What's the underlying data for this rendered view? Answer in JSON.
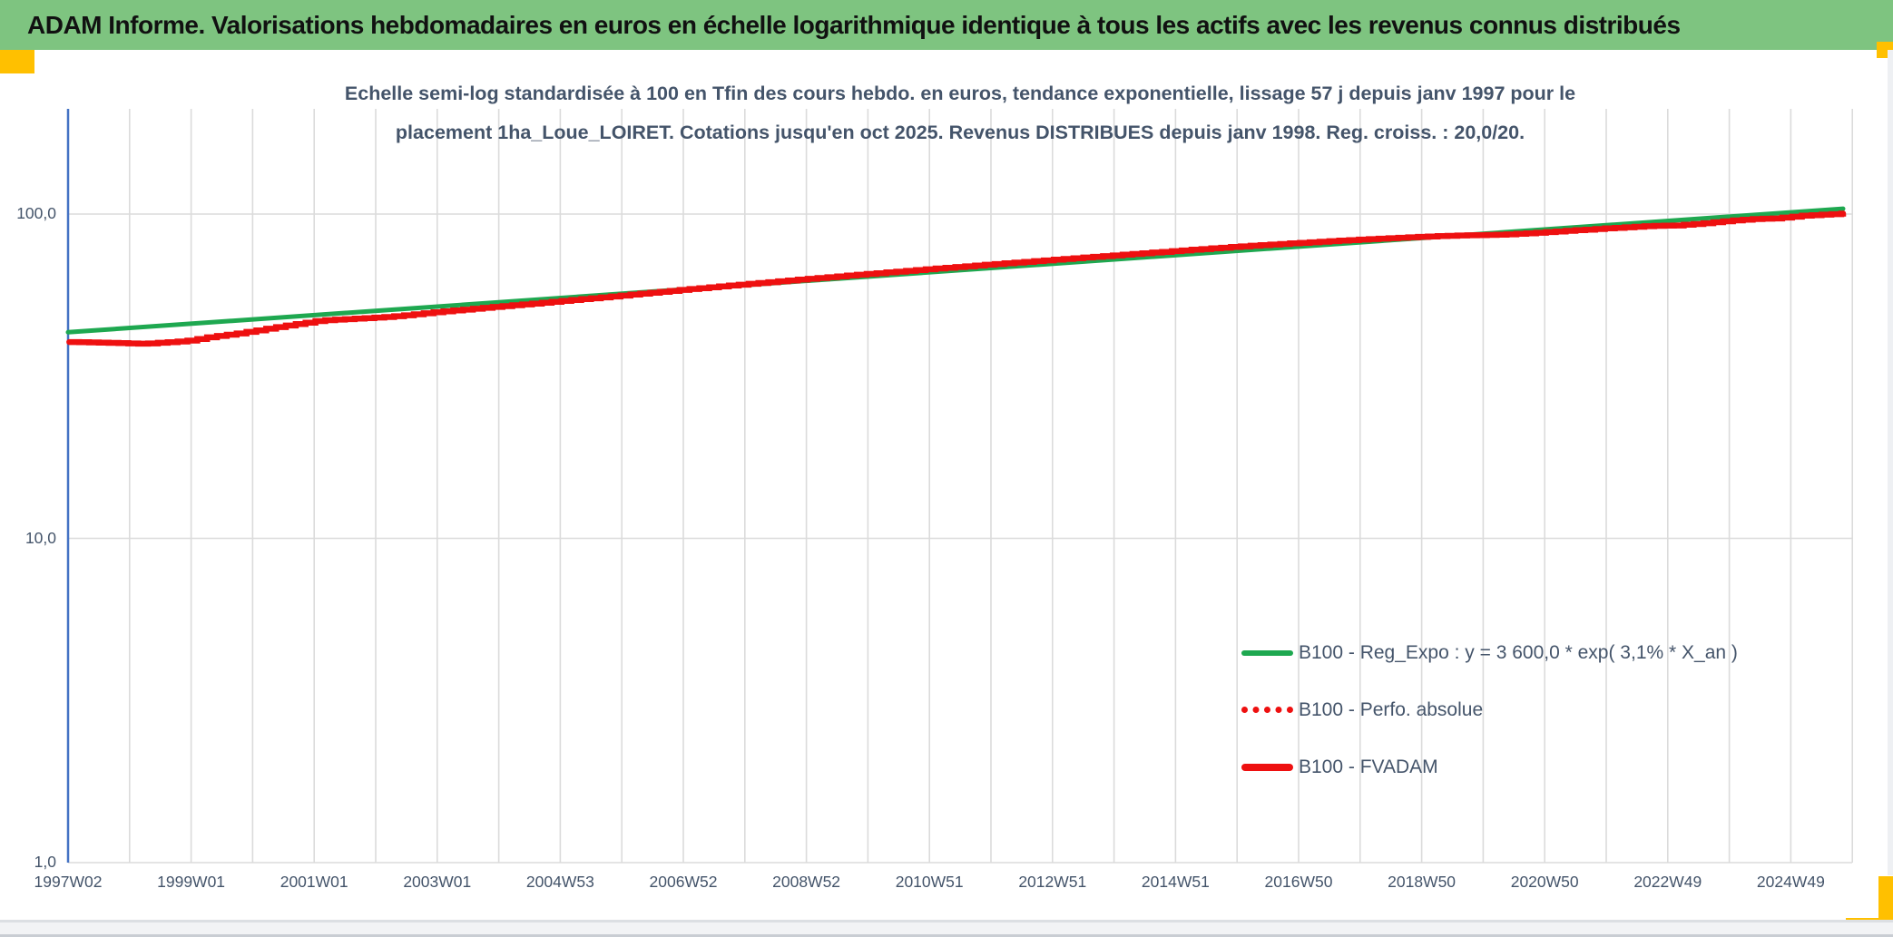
{
  "header": {
    "title": "ADAM Informe. Valorisations hebdomadaires en euros en échelle logarithmique identique à tous les actifs avec les revenus connus distribués"
  },
  "colors": {
    "header_bg": "#7EC480",
    "accent_orange": "#FFC000",
    "green_series": "#1EA850",
    "red_series": "#EE1010",
    "axis_blue": "#4472C4",
    "text": "#44546A",
    "gridline": "#DBDBDB"
  },
  "chart_data": {
    "type": "line",
    "title_line1": "Echelle semi-log standardisée à 100 en Tfin des cours hebdo. en euros, tendance exponentielle, lissage 57 j depuis janv 1997 pour le",
    "title_line2": "placement 1ha_Loue_LOIRET. Cotations jusqu'en oct 2025. Revenus DISTRIBUES depuis janv 1998. Reg. croiss. : 20,0/20.",
    "y_axis": {
      "scale": "log",
      "min": 1.0,
      "max": 210,
      "ticks": [
        {
          "label": "100,0",
          "value": 100
        },
        {
          "label": "10,0",
          "value": 10
        },
        {
          "label": "1,0",
          "value": 1
        }
      ]
    },
    "x_axis": {
      "start_year": 1997,
      "end_year": 2026,
      "gridline_every_years": 1,
      "tick_labels": [
        "1997W02",
        "1999W01",
        "2001W01",
        "2003W01",
        "2004W53",
        "2006W52",
        "2008W52",
        "2010W51",
        "2012W51",
        "2014W51",
        "2016W50",
        "2018W50",
        "2020W50",
        "2022W49",
        "2024W49"
      ]
    },
    "legend": [
      {
        "label": "B100 - Reg_Expo : y = 3 600,0 * exp( 3,1% *  X_an )",
        "color": "#1EA850",
        "style": "solid"
      },
      {
        "label": "B100 - Perfo. absolue",
        "color": "#EE1010",
        "style": "dotted"
      },
      {
        "label": "B100 - FVADAM",
        "color": "#EE1010",
        "style": "solid"
      }
    ],
    "series": [
      {
        "name": "B100 - Reg_Expo",
        "color": "#1EA850",
        "style": "solid",
        "shape": "linear",
        "width": 5,
        "points": [
          [
            1997.0,
            43.2
          ],
          [
            2025.85,
            103.9
          ]
        ]
      },
      {
        "name": "B100 - Perfo. absolue",
        "color": "#EE1010",
        "style": "dotted",
        "shape": "step",
        "width": 4,
        "points": [
          [
            1997.02,
            40.3
          ],
          [
            1997.6,
            40.1
          ],
          [
            1998.2,
            39.8
          ],
          [
            1998.9,
            40.6
          ],
          [
            1999.3,
            41.8
          ],
          [
            1999.8,
            43.0
          ],
          [
            2000.5,
            45.2
          ],
          [
            2001.1,
            47.0
          ],
          [
            2001.5,
            47.4
          ],
          [
            2002.2,
            48.2
          ],
          [
            2003.0,
            49.9
          ],
          [
            2004.0,
            51.9
          ],
          [
            2005.0,
            53.9
          ],
          [
            2006.0,
            56.1
          ],
          [
            2007.0,
            58.5
          ],
          [
            2008.0,
            60.8
          ],
          [
            2009.0,
            63.1
          ],
          [
            2010.0,
            65.4
          ],
          [
            2011.0,
            67.7
          ],
          [
            2012.0,
            70.0
          ],
          [
            2013.0,
            72.3
          ],
          [
            2014.0,
            74.6
          ],
          [
            2015.0,
            77.0
          ],
          [
            2016.0,
            79.4
          ],
          [
            2017.0,
            81.5
          ],
          [
            2018.0,
            83.5
          ],
          [
            2019.0,
            85.2
          ],
          [
            2019.6,
            85.9
          ],
          [
            2020.3,
            86.4
          ],
          [
            2021.0,
            87.9
          ],
          [
            2022.0,
            90.4
          ],
          [
            2022.7,
            91.9
          ],
          [
            2023.1,
            92.2
          ],
          [
            2023.5,
            93.4
          ],
          [
            2024.0,
            95.4
          ],
          [
            2024.4,
            96.6
          ],
          [
            2024.7,
            96.9
          ],
          [
            2025.2,
            98.9
          ],
          [
            2025.85,
            100.4
          ]
        ]
      },
      {
        "name": "B100 - FVADAM",
        "color": "#EE1010",
        "style": "solid",
        "shape": "step",
        "width": 6.5,
        "points": [
          [
            1997.02,
            40.3
          ],
          [
            1997.6,
            40.1
          ],
          [
            1998.2,
            39.8
          ],
          [
            1998.9,
            40.6
          ],
          [
            1999.3,
            41.8
          ],
          [
            1999.8,
            43.0
          ],
          [
            2000.5,
            45.2
          ],
          [
            2001.1,
            47.0
          ],
          [
            2001.5,
            47.4
          ],
          [
            2002.2,
            48.2
          ],
          [
            2003.0,
            49.9
          ],
          [
            2004.0,
            51.9
          ],
          [
            2005.0,
            53.9
          ],
          [
            2006.0,
            56.1
          ],
          [
            2007.0,
            58.5
          ],
          [
            2008.0,
            60.8
          ],
          [
            2009.0,
            63.1
          ],
          [
            2010.0,
            65.4
          ],
          [
            2011.0,
            67.7
          ],
          [
            2012.0,
            70.0
          ],
          [
            2013.0,
            72.3
          ],
          [
            2014.0,
            74.6
          ],
          [
            2015.0,
            77.0
          ],
          [
            2016.0,
            79.4
          ],
          [
            2017.0,
            81.5
          ],
          [
            2018.0,
            83.5
          ],
          [
            2019.0,
            85.2
          ],
          [
            2019.6,
            85.9
          ],
          [
            2020.3,
            86.4
          ],
          [
            2021.0,
            87.9
          ],
          [
            2022.0,
            90.4
          ],
          [
            2022.7,
            91.9
          ],
          [
            2023.1,
            92.2
          ],
          [
            2023.5,
            93.4
          ],
          [
            2024.0,
            95.4
          ],
          [
            2024.4,
            96.6
          ],
          [
            2024.7,
            96.9
          ],
          [
            2025.2,
            98.9
          ],
          [
            2025.85,
            100.4
          ]
        ]
      }
    ]
  }
}
